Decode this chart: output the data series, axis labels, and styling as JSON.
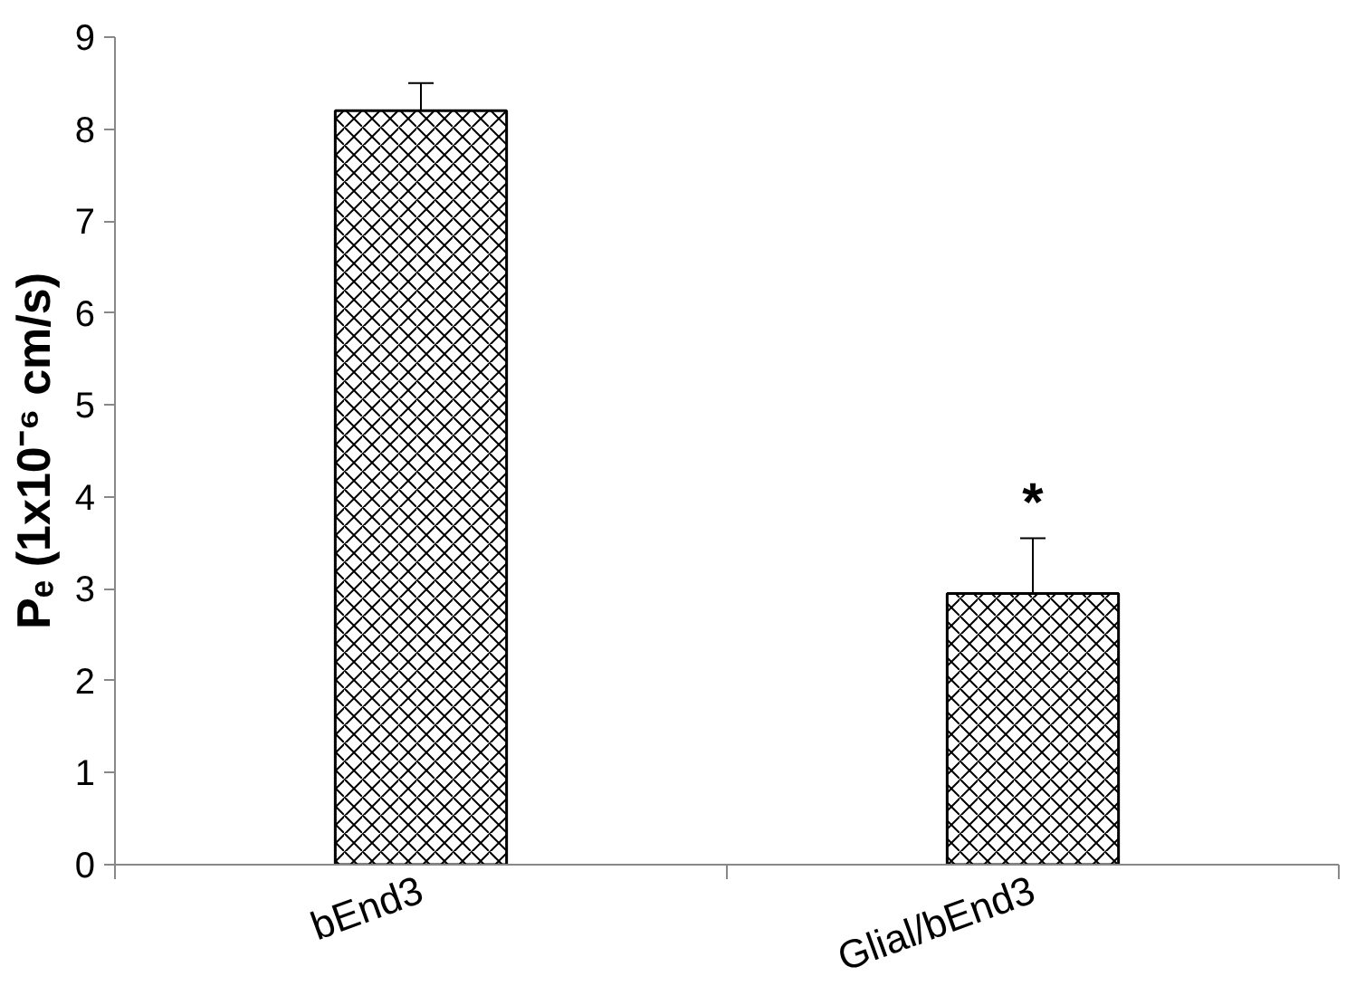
{
  "chart_data": {
    "type": "bar",
    "ylabel": "Pₑ (1x10⁻⁶ cm/s)",
    "categories": [
      "bEnd3",
      "Glial/bEnd3"
    ],
    "values": [
      8.2,
      2.95
    ],
    "errors": [
      0.3,
      0.6
    ],
    "color": "#ffffff",
    "ylim": [
      0,
      9
    ],
    "yticks": [
      0,
      1,
      2,
      3,
      4,
      5,
      6,
      7,
      8,
      9
    ],
    "grid": false,
    "annotations": [
      {
        "text": "*",
        "x": "Glial/bEnd3",
        "y": 3.6
      }
    ]
  }
}
